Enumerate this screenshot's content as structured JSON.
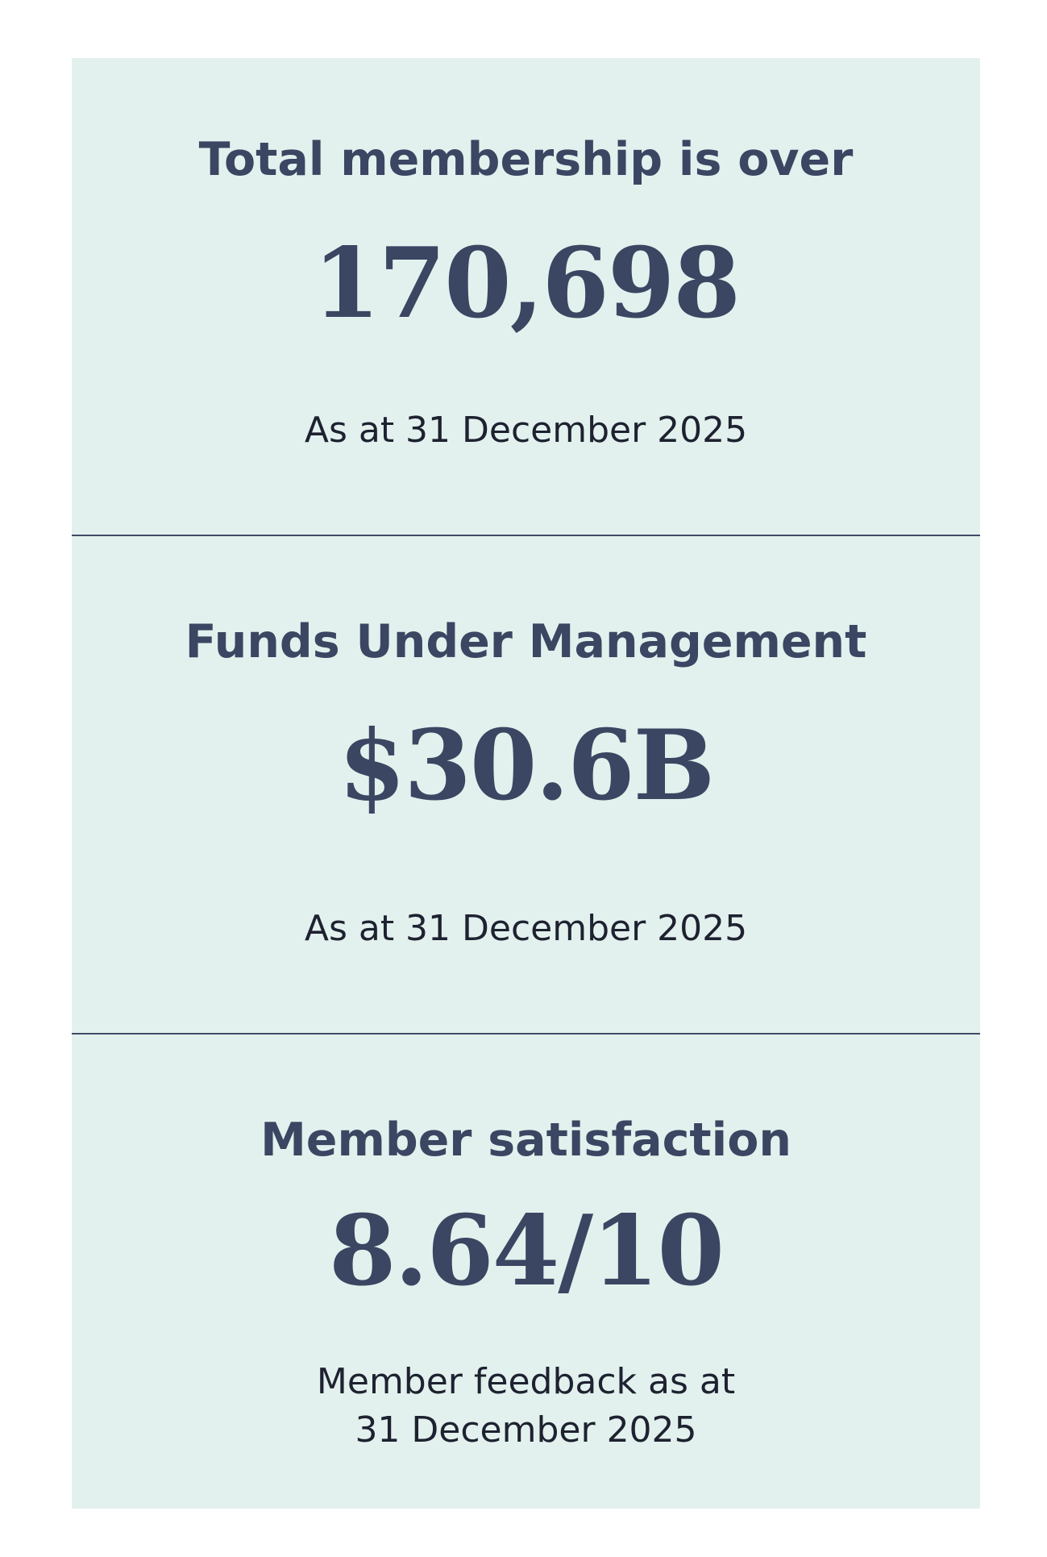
{
  "stats": [
    {
      "heading": "Total membership is over",
      "value": "170,698",
      "note_line1": "As at 31 December 2025",
      "note_line2": ""
    },
    {
      "heading": "Funds Under Management",
      "value": "$30.6B",
      "note_line1": "As at 31 December 2025",
      "note_line2": ""
    },
    {
      "heading": "Member satisfaction",
      "value": "8.64/10",
      "note_line1": "Member feedback as at",
      "note_line2": "31 December 2025"
    }
  ],
  "colors": {
    "card_background": "#e3f1ee",
    "heading_text": "#3a4662",
    "divider": "#3f4b66",
    "note_text": "#1e2230"
  }
}
